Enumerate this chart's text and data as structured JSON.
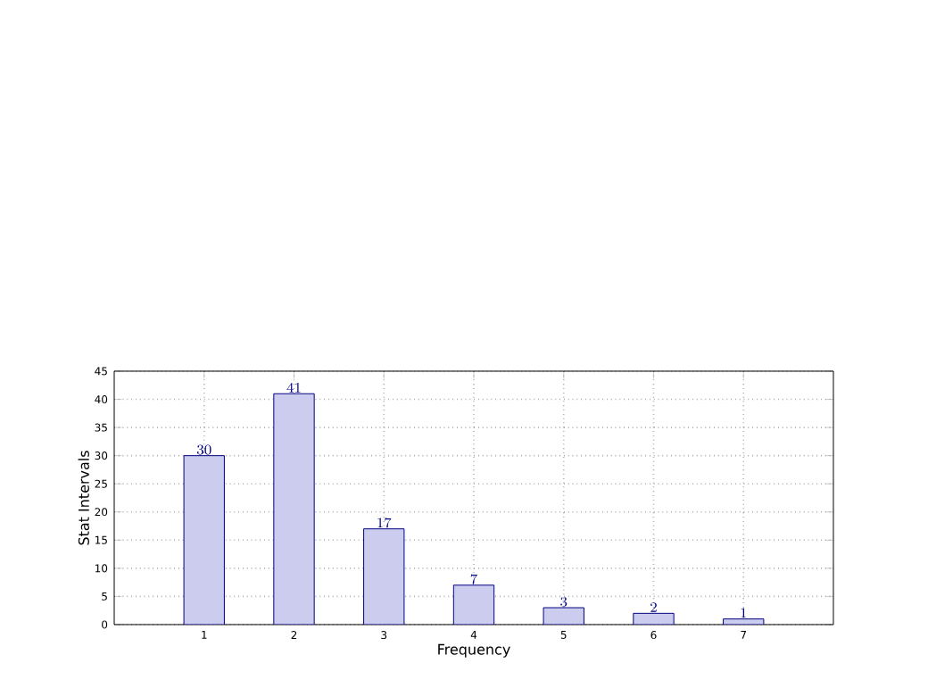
{
  "chart_data": {
    "type": "bar",
    "xlabel": "Frequency",
    "ylabel": "Stat Intervals",
    "x": [
      1,
      2,
      3,
      4,
      5,
      6,
      7
    ],
    "values": [
      30,
      41,
      17,
      7,
      3,
      2,
      1
    ],
    "color": "#ccccee",
    "xlim": [
      0,
      8
    ],
    "xticks": [
      1,
      2,
      3,
      4,
      5,
      6,
      7
    ],
    "ylim": [
      0,
      45
    ],
    "yticks": [
      0,
      5,
      10,
      15,
      20,
      25,
      30,
      35,
      40,
      45
    ],
    "grid": true,
    "data_labels": true
  }
}
